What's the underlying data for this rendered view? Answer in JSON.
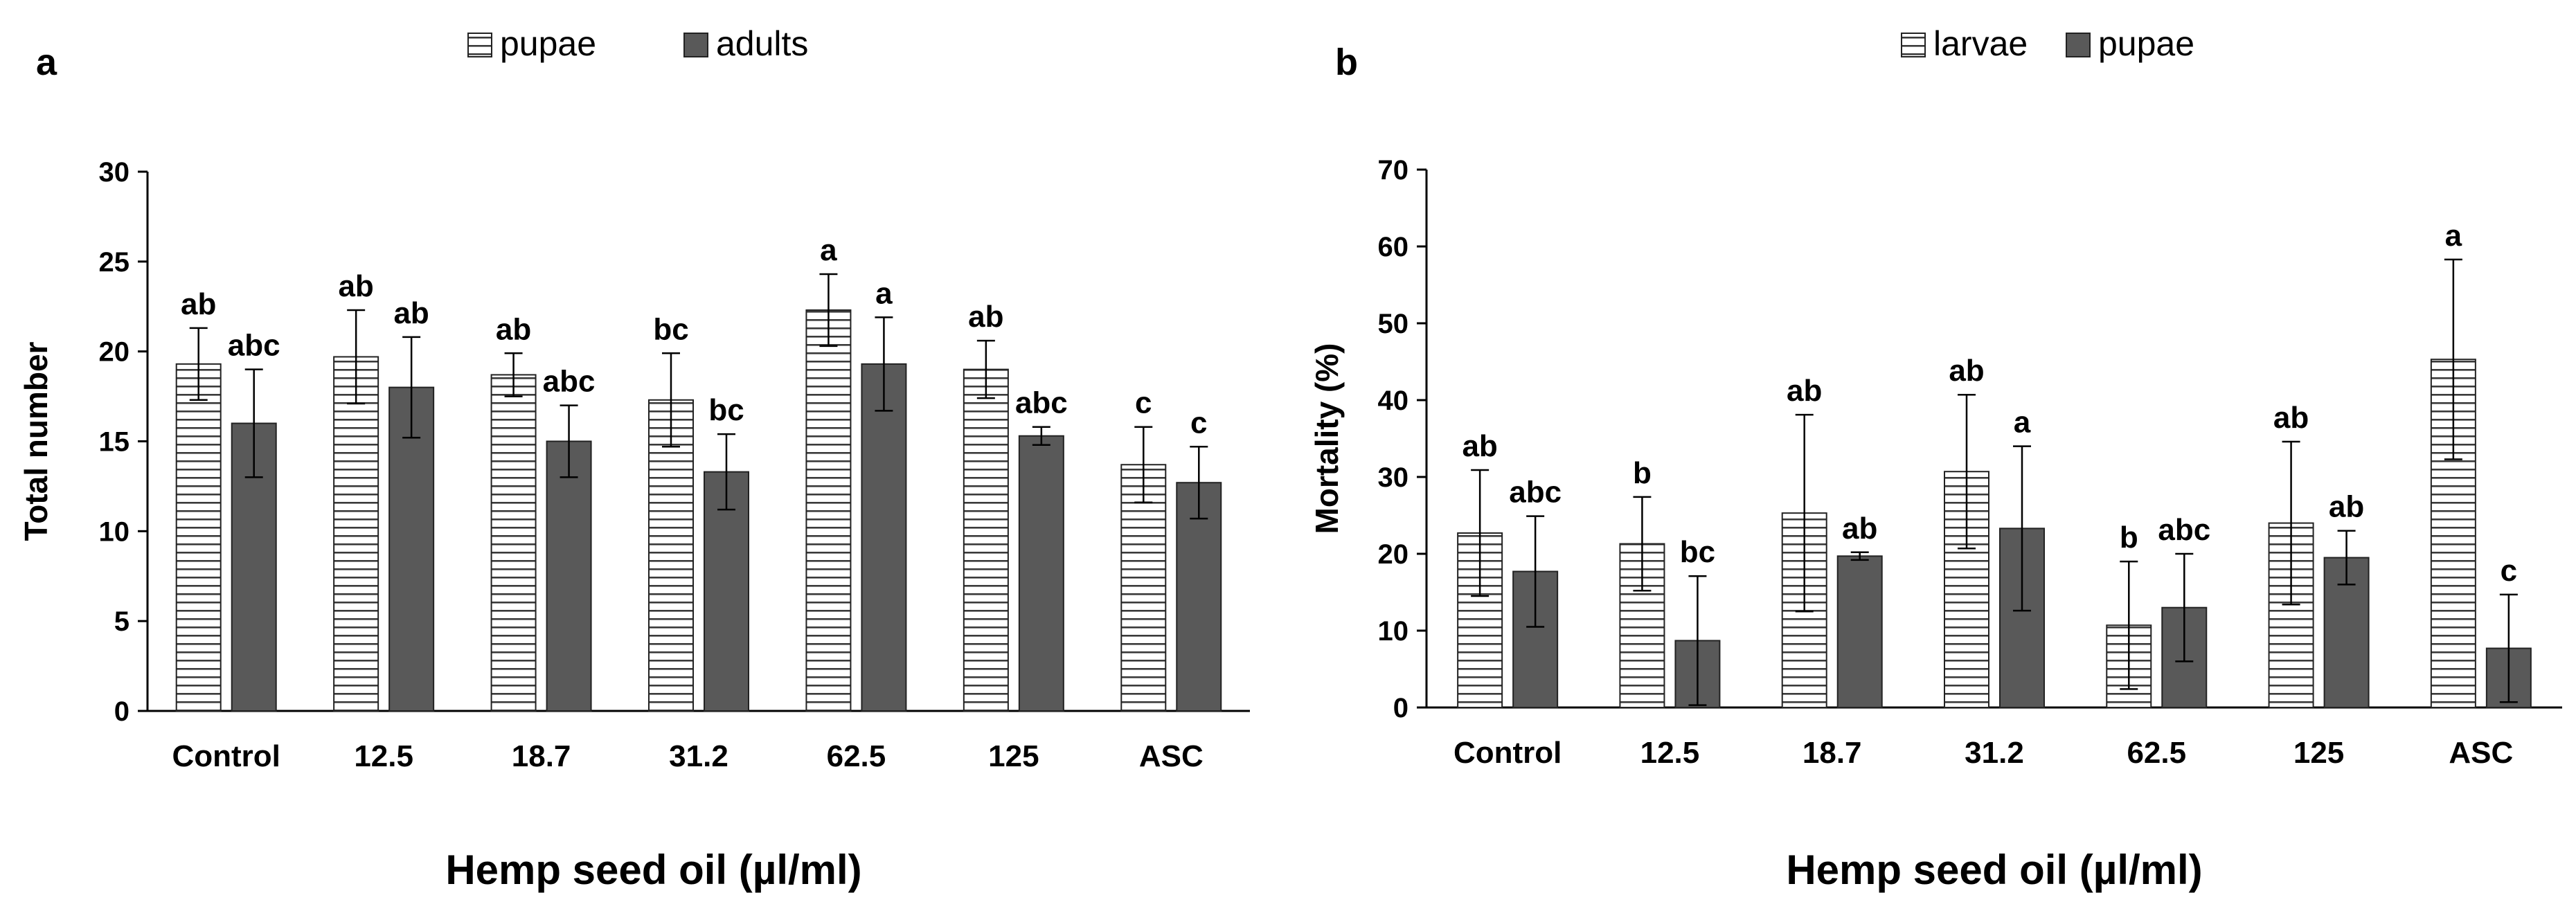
{
  "chart_data": [
    {
      "panel": "a",
      "type": "bar",
      "xlabel": "Hemp seed oil (µl/ml)",
      "ylabel": "Total number",
      "ylim": [
        0,
        30
      ],
      "yticks": [
        0,
        5,
        10,
        15,
        20,
        25,
        30
      ],
      "grid": false,
      "legend": "top-center",
      "categories": [
        "Control",
        "12.5",
        "18.7",
        "31.2",
        "62.5",
        "125",
        "ASC"
      ],
      "series": [
        {
          "name": "pupae",
          "style": "hatched",
          "values": [
            19.3,
            19.7,
            18.7,
            17.3,
            22.3,
            19.0,
            13.7
          ],
          "errors": [
            2.0,
            2.6,
            1.2,
            2.6,
            2.0,
            1.6,
            2.1
          ],
          "labels": [
            "ab",
            "ab",
            "ab",
            "bc",
            "a",
            "ab",
            "c"
          ]
        },
        {
          "name": "adults",
          "style": "solid",
          "values": [
            16.0,
            18.0,
            15.0,
            13.3,
            19.3,
            15.3,
            12.7
          ],
          "errors": [
            3.0,
            2.8,
            2.0,
            2.1,
            2.6,
            0.5,
            2.0
          ],
          "labels": [
            "abc",
            "ab",
            "abc",
            "bc",
            "a",
            "abc",
            "c"
          ]
        }
      ]
    },
    {
      "panel": "b",
      "type": "bar",
      "xlabel": "Hemp seed oil (µl/ml)",
      "ylabel": "Mortality (%)",
      "ylim": [
        0,
        70
      ],
      "yticks": [
        0,
        10,
        20,
        30,
        40,
        50,
        60,
        70
      ],
      "grid": false,
      "legend": "top-center",
      "categories": [
        "Control",
        "12.5",
        "18.7",
        "31.2",
        "62.5",
        "125",
        "ASC"
      ],
      "series": [
        {
          "name": "larvae",
          "style": "hatched",
          "values": [
            22.7,
            21.3,
            25.3,
            30.7,
            10.7,
            24.0,
            45.3
          ],
          "errors": [
            8.2,
            6.1,
            12.8,
            10.0,
            8.3,
            10.6,
            13.0
          ],
          "labels": [
            "ab",
            "b",
            "ab",
            "ab",
            "b",
            "ab",
            "a"
          ]
        },
        {
          "name": "pupae",
          "style": "solid",
          "values": [
            17.7,
            8.7,
            19.7,
            23.3,
            13.0,
            19.5,
            7.7
          ],
          "errors": [
            7.2,
            8.4,
            0.5,
            10.7,
            7.0,
            3.5,
            7.0
          ],
          "labels": [
            "abc",
            "bc",
            "ab",
            "a",
            "abc",
            "ab",
            "c"
          ]
        }
      ]
    }
  ],
  "colors": {
    "solid": "#595959",
    "hatch_line": "#3a3a3a",
    "axis": "#000000"
  }
}
